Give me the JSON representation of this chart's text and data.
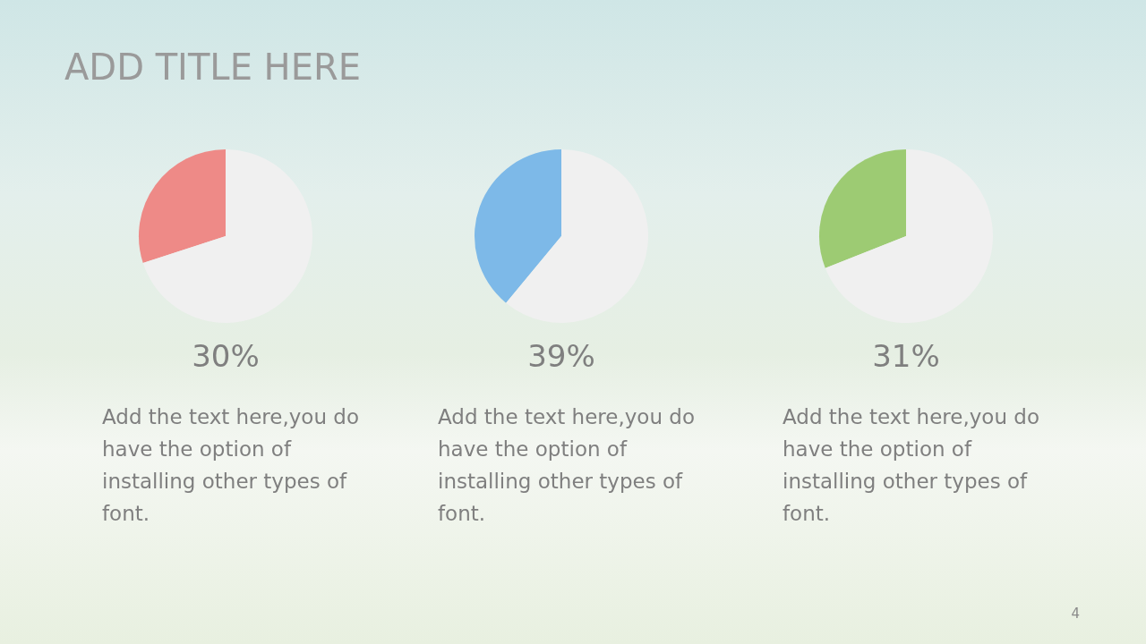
{
  "chart_data": [
    {
      "type": "pie",
      "title": "ADD TITLE HERE",
      "categories": [
        null,
        null
      ],
      "values": [
        30,
        70
      ],
      "colors": [
        "#ee8a87",
        "#f0f0f0"
      ],
      "annotations": [
        "30%",
        "Add the text here,you do have the option of installing other types of font."
      ]
    },
    {
      "type": "pie",
      "categories": [
        null,
        null
      ],
      "values": [
        39,
        61
      ],
      "colors": [
        "#7db9e8",
        "#f0f0f0"
      ],
      "annotations": [
        "39%",
        "Add the text here,you do have the option of installing other types of font."
      ]
    },
    {
      "type": "pie",
      "categories": [
        null,
        null
      ],
      "values": [
        31,
        69
      ],
      "colors": [
        "#9dcb73",
        "#f0f0f0"
      ],
      "annotations": [
        "31%",
        "Add the text here,you do have the option of installing other types of font.",
        "4"
      ]
    }
  ]
}
